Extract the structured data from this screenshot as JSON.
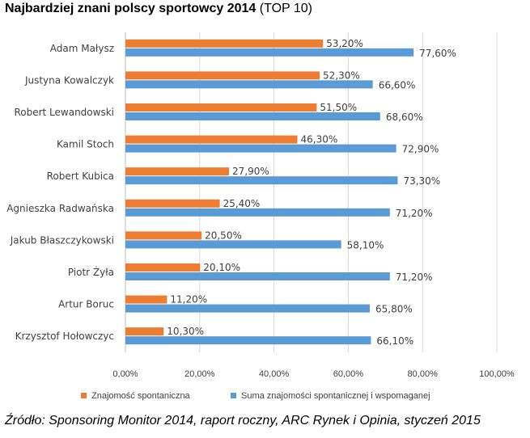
{
  "title": {
    "main": "Najbardziej znani polscy sportowcy 2014",
    "sub": "(TOP 10)"
  },
  "colors": {
    "series1": "#ED7D31",
    "series2": "#5B9BD5",
    "grid": "#D9D9D9",
    "text": "#404040"
  },
  "chart_data": {
    "type": "bar",
    "orientation": "horizontal",
    "title": "Najbardziej znani polscy sportowcy 2014 (TOP 10)",
    "categories": [
      "Adam Małysz",
      "Justyna Kowalczyk",
      "Robert Lewandowski",
      "Kamil Stoch",
      "Robert Kubica",
      "Agnieszka Radwańska",
      "Jakub Błaszczykowski",
      "Piotr Żyła",
      "Artur Boruc",
      "Krzysztof Hołowczyc"
    ],
    "series": [
      {
        "name": "Znajomość spontaniczna",
        "values": [
          53.2,
          52.3,
          51.5,
          46.3,
          27.9,
          25.4,
          20.5,
          20.1,
          11.2,
          10.3
        ],
        "labels": [
          "53,20%",
          "52,30%",
          "51,50%",
          "46,30%",
          "27,90%",
          "25,40%",
          "20,50%",
          "20,10%",
          "11,20%",
          "10,30%"
        ]
      },
      {
        "name": "Suma znajomości spontanicznej i wspomaganej",
        "values": [
          77.6,
          66.6,
          68.6,
          72.9,
          73.3,
          71.2,
          58.1,
          71.2,
          65.8,
          66.1
        ],
        "labels": [
          "77,60%",
          "66,60%",
          "68,60%",
          "72,90%",
          "73,30%",
          "71,20%",
          "58,10%",
          "71,20%",
          "65,80%",
          "66,10%"
        ]
      }
    ],
    "xlim": [
      0,
      100
    ],
    "xticks": [
      0,
      20,
      40,
      60,
      80,
      100
    ],
    "xtick_labels": [
      "0,00%",
      "20,00%",
      "40,00%",
      "60,00%",
      "80,00%",
      "100,00%"
    ],
    "grid": true,
    "legend": "bottom"
  },
  "legend": {
    "series1_label": "Znajomość spontaniczna",
    "series2_label": "Suma znajomości spontanicznej i wspomaganej"
  },
  "source": "Źródło: Sponsoring Monitor 2014, raport roczny, ARC Rynek i Opinia, styczeń 2015"
}
